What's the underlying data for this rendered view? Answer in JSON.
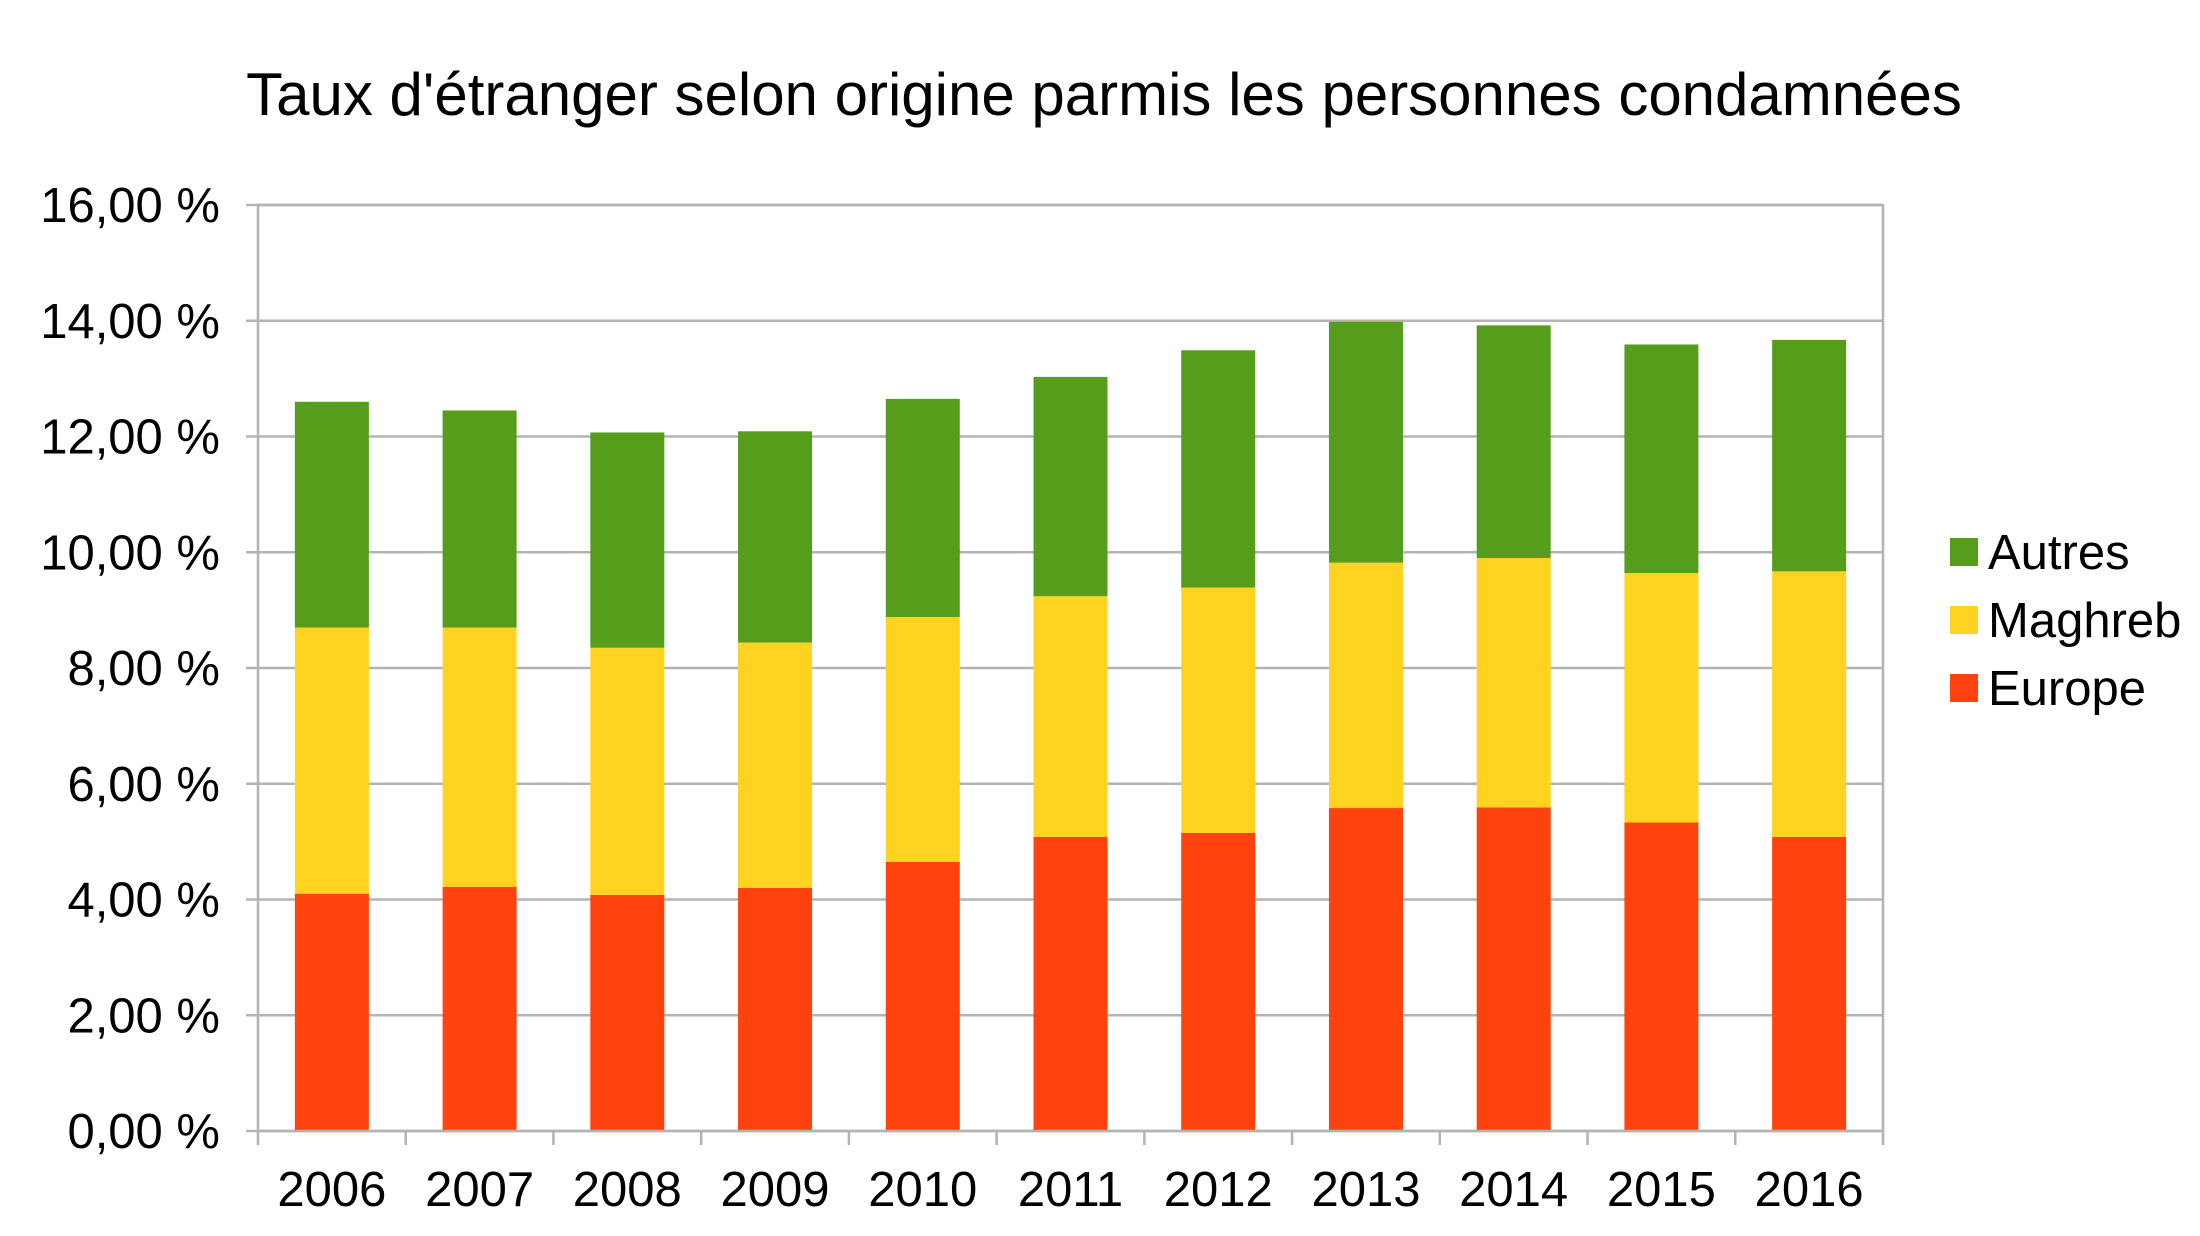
{
  "chart_data": {
    "type": "bar",
    "stacked": true,
    "title": "Taux d'étranger selon origine parmis les personnes condamnées",
    "xlabel": "",
    "ylabel": "",
    "ylim": [
      0,
      16
    ],
    "y_ticks": [
      0,
      2,
      4,
      6,
      8,
      10,
      12,
      14,
      16
    ],
    "y_tick_labels": [
      "0,00 %",
      "2,00 %",
      "4,00 %",
      "6,00 %",
      "8,00 %",
      "10,00 %",
      "12,00 %",
      "14,00 %",
      "16,00 %"
    ],
    "grid": true,
    "legend_position": "right",
    "categories": [
      "2006",
      "2007",
      "2008",
      "2009",
      "2010",
      "2011",
      "2012",
      "2013",
      "2014",
      "2015",
      "2016"
    ],
    "series": [
      {
        "name": "Europe",
        "color": "#ff420e",
        "values": [
          4.1,
          4.22,
          4.08,
          4.2,
          4.65,
          5.08,
          5.15,
          5.58,
          5.59,
          5.33,
          5.08
        ]
      },
      {
        "name": "Maghreb",
        "color": "#ffd320",
        "values": [
          4.6,
          4.48,
          4.27,
          4.24,
          4.23,
          4.16,
          4.24,
          4.24,
          4.31,
          4.31,
          4.59
        ]
      },
      {
        "name": "Autres",
        "color": "#579d1c",
        "values": [
          3.9,
          3.75,
          3.72,
          3.65,
          3.77,
          3.79,
          4.1,
          4.16,
          4.02,
          3.95,
          4.0
        ]
      }
    ]
  }
}
